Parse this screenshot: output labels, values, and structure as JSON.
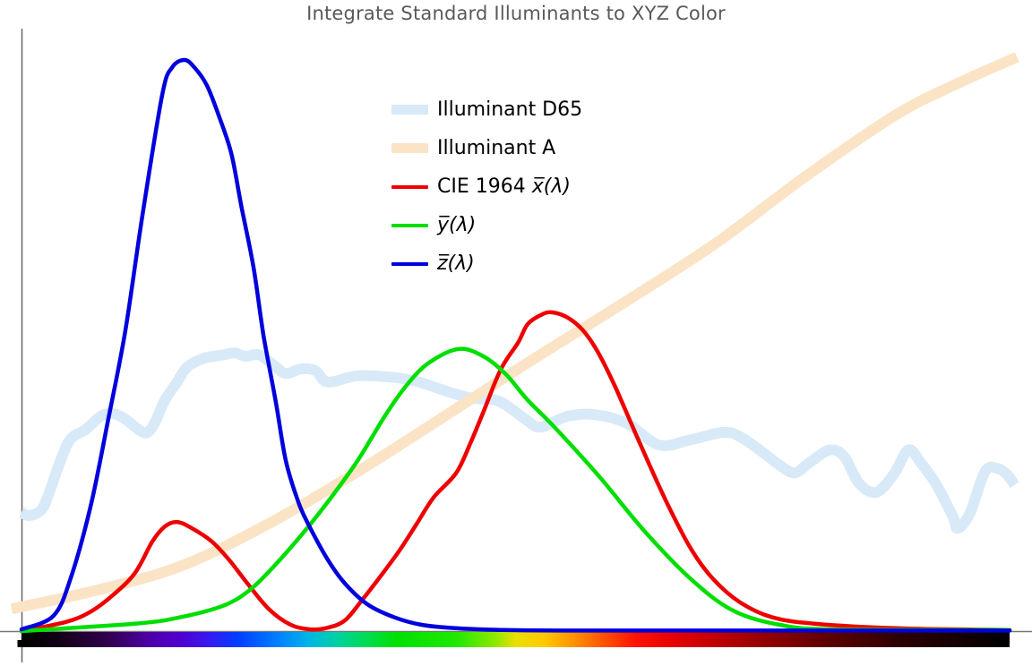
{
  "chart_data": {
    "type": "line",
    "title": "Integrate Standard Illuminants to XYZ Color",
    "xlabel": "",
    "ylabel": "",
    "x_unit": "wavelength_nm",
    "xlim": [
      380,
      780
    ],
    "ylim": [
      0,
      1.05
    ],
    "grid": false,
    "tick_labels": "none",
    "legend_position": "upper center-left inside plot",
    "series": [
      {
        "name": "Illuminant D65",
        "color": "#d8e9f8",
        "width": 12,
        "points": [
          [
            380,
            0.208
          ],
          [
            383,
            0.202
          ],
          [
            388,
            0.212
          ],
          [
            391,
            0.24
          ],
          [
            396,
            0.301
          ],
          [
            400,
            0.337
          ],
          [
            406,
            0.353
          ],
          [
            412,
            0.376
          ],
          [
            417,
            0.381
          ],
          [
            422,
            0.371
          ],
          [
            428,
            0.351
          ],
          [
            431,
            0.348
          ],
          [
            434,
            0.365
          ],
          [
            438,
            0.404
          ],
          [
            443,
            0.436
          ],
          [
            447,
            0.462
          ],
          [
            454,
            0.478
          ],
          [
            461,
            0.483
          ],
          [
            466,
            0.487
          ],
          [
            471,
            0.481
          ],
          [
            476,
            0.484
          ],
          [
            482,
            0.466
          ],
          [
            487,
            0.451
          ],
          [
            493,
            0.459
          ],
          [
            499,
            0.456
          ],
          [
            504,
            0.436
          ],
          [
            516,
            0.447
          ],
          [
            531,
            0.444
          ],
          [
            541,
            0.436
          ],
          [
            552,
            0.42
          ],
          [
            562,
            0.408
          ],
          [
            573,
            0.403
          ],
          [
            584,
            0.371
          ],
          [
            590,
            0.357
          ],
          [
            601,
            0.376
          ],
          [
            612,
            0.379
          ],
          [
            625,
            0.364
          ],
          [
            638,
            0.326
          ],
          [
            650,
            0.334
          ],
          [
            664,
            0.348
          ],
          [
            671,
            0.34
          ],
          [
            681,
            0.31
          ],
          [
            687,
            0.29
          ],
          [
            693,
            0.277
          ],
          [
            699,
            0.295
          ],
          [
            707,
            0.317
          ],
          [
            713,
            0.306
          ],
          [
            719,
            0.259
          ],
          [
            726,
            0.243
          ],
          [
            733,
            0.274
          ],
          [
            739,
            0.317
          ],
          [
            744,
            0.295
          ],
          [
            750,
            0.259
          ],
          [
            757,
            0.201
          ],
          [
            759,
            0.18
          ],
          [
            764,
            0.207
          ],
          [
            770,
            0.279
          ],
          [
            775,
            0.285
          ],
          [
            779,
            0.274
          ],
          [
            782,
            0.256
          ]
        ]
      },
      {
        "name": "Illuminant A",
        "color": "#fbe3c5",
        "width": 12,
        "points": [
          [
            376,
            0.039
          ],
          [
            408,
            0.069
          ],
          [
            444,
            0.113
          ],
          [
            480,
            0.188
          ],
          [
            516,
            0.279
          ],
          [
            553,
            0.381
          ],
          [
            589,
            0.481
          ],
          [
            625,
            0.578
          ],
          [
            661,
            0.679
          ],
          [
            698,
            0.798
          ],
          [
            734,
            0.904
          ],
          [
            759,
            0.959
          ],
          [
            783,
            1.005
          ]
        ]
      },
      {
        "name": "CIE 1964 x̅(λ)",
        "color": "#ee0000",
        "width": 4.5,
        "points": [
          [
            380,
            0.0
          ],
          [
            398,
            0.016
          ],
          [
            408,
            0.034
          ],
          [
            417,
            0.063
          ],
          [
            426,
            0.102
          ],
          [
            433,
            0.157
          ],
          [
            438,
            0.183
          ],
          [
            443,
            0.191
          ],
          [
            449,
            0.18
          ],
          [
            457,
            0.157
          ],
          [
            464,
            0.125
          ],
          [
            471,
            0.086
          ],
          [
            480,
            0.039
          ],
          [
            489,
            0.011
          ],
          [
            497,
            0.003
          ],
          [
            504,
            0.006
          ],
          [
            511,
            0.019
          ],
          [
            518,
            0.055
          ],
          [
            525,
            0.094
          ],
          [
            533,
            0.141
          ],
          [
            540,
            0.188
          ],
          [
            547,
            0.235
          ],
          [
            556,
            0.277
          ],
          [
            562,
            0.332
          ],
          [
            567,
            0.384
          ],
          [
            574,
            0.458
          ],
          [
            581,
            0.505
          ],
          [
            585,
            0.538
          ],
          [
            591,
            0.555
          ],
          [
            595,
            0.558
          ],
          [
            601,
            0.549
          ],
          [
            607,
            0.528
          ],
          [
            613,
            0.491
          ],
          [
            620,
            0.431
          ],
          [
            630,
            0.332
          ],
          [
            641,
            0.227
          ],
          [
            651,
            0.144
          ],
          [
            660,
            0.091
          ],
          [
            671,
            0.05
          ],
          [
            684,
            0.024
          ],
          [
            701,
            0.013
          ],
          [
            734,
            0.005
          ],
          [
            780,
            0.002
          ]
        ]
      },
      {
        "name": "y̅(λ)",
        "color": "#00de00",
        "width": 4.5,
        "points": [
          [
            380,
            0.0
          ],
          [
            426,
            0.013
          ],
          [
            444,
            0.024
          ],
          [
            462,
            0.045
          ],
          [
            473,
            0.074
          ],
          [
            484,
            0.122
          ],
          [
            495,
            0.177
          ],
          [
            505,
            0.232
          ],
          [
            516,
            0.298
          ],
          [
            527,
            0.376
          ],
          [
            536,
            0.431
          ],
          [
            545,
            0.47
          ],
          [
            557,
            0.494
          ],
          [
            567,
            0.481
          ],
          [
            576,
            0.45
          ],
          [
            585,
            0.404
          ],
          [
            596,
            0.356
          ],
          [
            614,
            0.27
          ],
          [
            632,
            0.176
          ],
          [
            651,
            0.091
          ],
          [
            668,
            0.036
          ],
          [
            687,
            0.011
          ],
          [
            709,
            0.003
          ],
          [
            780,
            0.002
          ]
        ]
      },
      {
        "name": "z̅(λ)",
        "color": "#0000dd",
        "width": 4.5,
        "points": [
          [
            380,
            0.003
          ],
          [
            393,
            0.027
          ],
          [
            400,
            0.094
          ],
          [
            408,
            0.219
          ],
          [
            415,
            0.368
          ],
          [
            422,
            0.525
          ],
          [
            429,
            0.729
          ],
          [
            437,
            0.94
          ],
          [
            441,
            0.987
          ],
          [
            446,
            1.0
          ],
          [
            450,
            0.987
          ],
          [
            455,
            0.956
          ],
          [
            460,
            0.901
          ],
          [
            465,
            0.835
          ],
          [
            469,
            0.744
          ],
          [
            474,
            0.635
          ],
          [
            478,
            0.517
          ],
          [
            483,
            0.4
          ],
          [
            487,
            0.298
          ],
          [
            492,
            0.227
          ],
          [
            496,
            0.188
          ],
          [
            504,
            0.125
          ],
          [
            511,
            0.083
          ],
          [
            520,
            0.047
          ],
          [
            531,
            0.024
          ],
          [
            542,
            0.011
          ],
          [
            556,
            0.005
          ],
          [
            574,
            0.002
          ],
          [
            607,
            0.001
          ],
          [
            700,
            0.001
          ],
          [
            780,
            0.001
          ]
        ]
      }
    ],
    "spectrum_bar": {
      "range_nm": [
        380,
        780
      ],
      "stops": [
        {
          "o": 0.0,
          "c": "#000000"
        },
        {
          "o": 0.04,
          "c": "#140018"
        },
        {
          "o": 0.09,
          "c": "#330052"
        },
        {
          "o": 0.13,
          "c": "#4d00a8"
        },
        {
          "o": 0.16,
          "c": "#5000d0"
        },
        {
          "o": 0.19,
          "c": "#3818f0"
        },
        {
          "o": 0.22,
          "c": "#0040ff"
        },
        {
          "o": 0.26,
          "c": "#0080ff"
        },
        {
          "o": 0.29,
          "c": "#00b4e8"
        },
        {
          "o": 0.32,
          "c": "#00d2a0"
        },
        {
          "o": 0.35,
          "c": "#00dc50"
        },
        {
          "o": 0.38,
          "c": "#00e000"
        },
        {
          "o": 0.44,
          "c": "#20e800"
        },
        {
          "o": 0.48,
          "c": "#90e800"
        },
        {
          "o": 0.5,
          "c": "#e8e000"
        },
        {
          "o": 0.53,
          "c": "#ffc800"
        },
        {
          "o": 0.56,
          "c": "#ff9000"
        },
        {
          "o": 0.59,
          "c": "#ff5000"
        },
        {
          "o": 0.62,
          "c": "#ff1400"
        },
        {
          "o": 0.66,
          "c": "#e60000"
        },
        {
          "o": 0.71,
          "c": "#b80000"
        },
        {
          "o": 0.76,
          "c": "#8c0000"
        },
        {
          "o": 0.82,
          "c": "#5a0000"
        },
        {
          "o": 0.89,
          "c": "#2c0000"
        },
        {
          "o": 1.0,
          "c": "#000000"
        }
      ]
    }
  },
  "legend": {
    "items": [
      {
        "prefix": "Illuminant D65",
        "math": "",
        "color": "#d8e9f8",
        "style": "thick"
      },
      {
        "prefix": "Illuminant A",
        "math": "",
        "color": "#fbe3c5",
        "style": "thick"
      },
      {
        "prefix": "CIE 1964 ",
        "math": "x̅(λ)",
        "color": "#ee0000",
        "style": "thin"
      },
      {
        "prefix": "",
        "math": "y̅(λ)",
        "color": "#00de00",
        "style": "thin"
      },
      {
        "prefix": "",
        "math": "z̅(λ)",
        "color": "#0000dd",
        "style": "thin"
      }
    ]
  },
  "axes": {
    "y_axis_color": "#666666",
    "x_axis_color": "#777777",
    "title_color": "#595959"
  }
}
